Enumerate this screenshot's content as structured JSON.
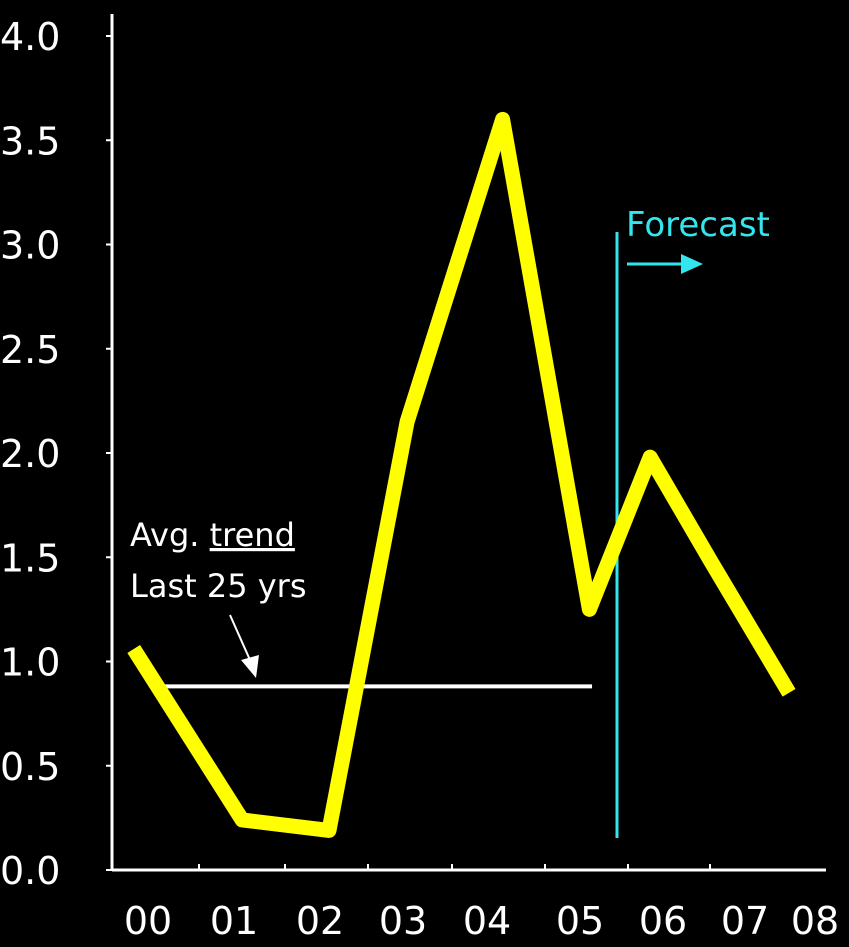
{
  "colors": {
    "background": "#000000",
    "axis": "#ffffff",
    "series": "#ffff00",
    "trend": "#ffffff",
    "forecast": "#33e6ee",
    "text": "#ffffff"
  },
  "chart_data": {
    "type": "line",
    "title": "",
    "xlabel": "",
    "ylabel": "",
    "categories": [
      "00",
      "01",
      "02",
      "03",
      "04",
      "05",
      "06",
      "07",
      "08"
    ],
    "ylim": [
      0.0,
      4.0
    ],
    "y_ticks": [
      "0.0",
      "0.5",
      "1.0",
      "1.5",
      "2.0",
      "2.5",
      "3.0",
      "3.5",
      "4.0"
    ],
    "grid": false,
    "legend": "none",
    "series": [
      {
        "color": "#ffff00",
        "points": [
          {
            "x": 0.25,
            "y": 1.06
          },
          {
            "x": 1.5,
            "y": 0.24
          },
          {
            "x": 2.5,
            "y": 0.19
          },
          {
            "x": 3.4,
            "y": 2.15
          },
          {
            "x": 4.5,
            "y": 3.6
          },
          {
            "x": 5.5,
            "y": 1.25
          },
          {
            "x": 6.2,
            "y": 1.98
          },
          {
            "x": 6.9,
            "y": 1.48
          },
          {
            "x": 7.8,
            "y": 0.85
          }
        ]
      }
    ],
    "reference_line": {
      "y": 0.9,
      "x_start": 0.2,
      "x_end": 5.3,
      "color": "#ffffff"
    },
    "forecast_marker": {
      "x": 5.5,
      "label": "Forecast",
      "color": "#33e6ee"
    },
    "annotation": {
      "line1_prefix": "Avg. ",
      "line1_underlined": "trend",
      "line2": "Last 25 yrs"
    }
  }
}
